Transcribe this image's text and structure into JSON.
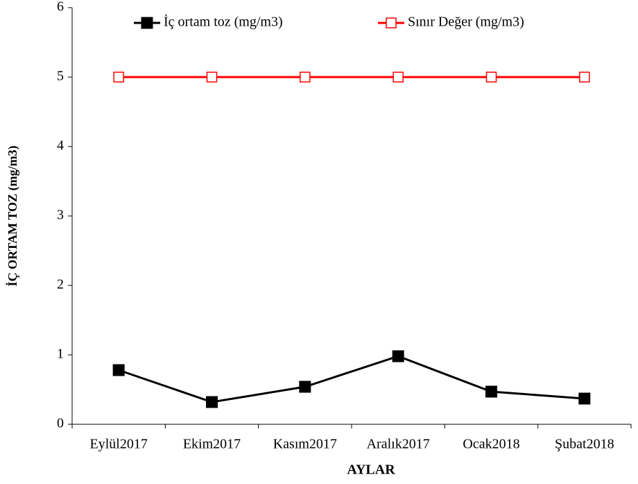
{
  "chart_data": {
    "type": "line",
    "x_label": "AYLAR",
    "y_label": "İÇ ORTAM TOZ (mg/m3)",
    "categories": [
      "Eylül2017",
      "Ekim2017",
      "Kasım2017",
      "Aralık2017",
      "Ocak2018",
      "Şubat2018"
    ],
    "series": [
      {
        "name": "İç ortam toz (mg/m3)",
        "color": "#000000",
        "marker": "filled-square",
        "values": [
          0.78,
          0.32,
          0.54,
          0.98,
          0.47,
          0.37
        ]
      },
      {
        "name": "Sınır Değer (mg/m3)",
        "color": "#ff0000",
        "marker": "open-square",
        "values": [
          5,
          5,
          5,
          5,
          5,
          5
        ]
      }
    ],
    "ylim": [
      0,
      6
    ],
    "yticks": [
      0,
      1,
      2,
      3,
      4,
      5,
      6
    ],
    "grid": false,
    "legend": "top"
  }
}
